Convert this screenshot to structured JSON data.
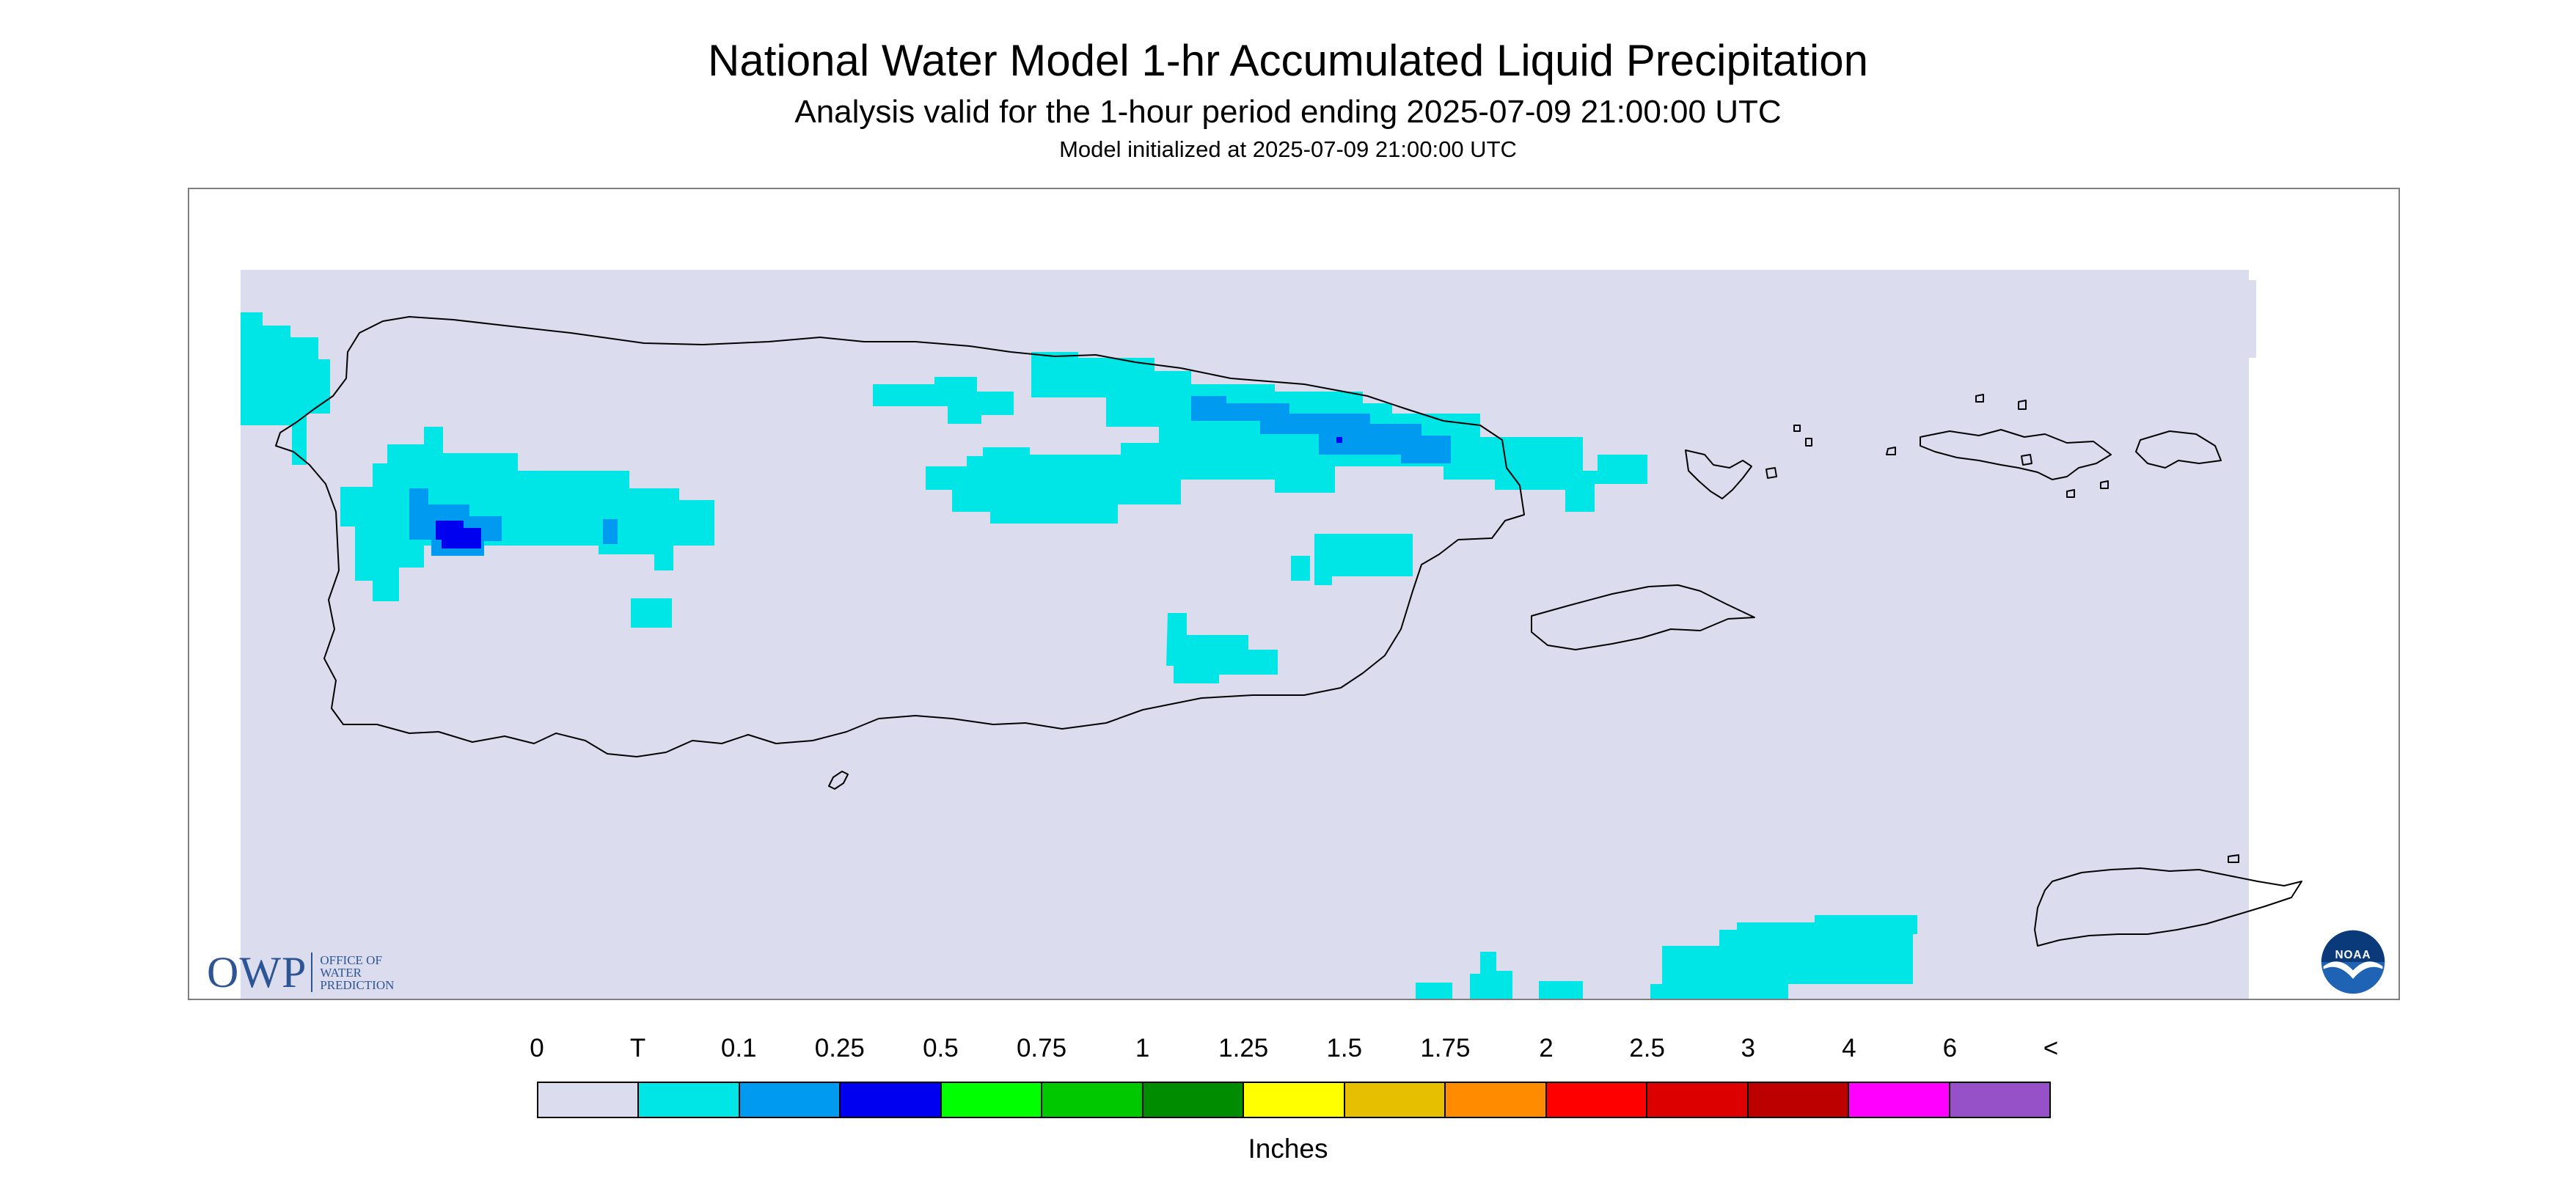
{
  "header": {
    "title": "National Water Model 1-hr Accumulated Liquid Precipitation",
    "subtitle": "Analysis valid for the 1-hour period ending 2025-07-09 21:00:00 UTC",
    "init": "Model initialized at 2025-07-09 21:00:00 UTC"
  },
  "map": {
    "background_color": "#dcdcef",
    "coastline_color": "#000000",
    "land_masses": [
      "puerto-rico",
      "culebra",
      "vieques",
      "st-thomas",
      "st-john",
      "st-croix",
      "mona-island"
    ]
  },
  "logos": {
    "owp": {
      "letters": "OWP",
      "line1": "OFFICE OF",
      "line2": "WATER",
      "line3": "PREDICTION",
      "color": "#2d5596"
    },
    "noaa": {
      "text": "NOAA",
      "colors": [
        "#1f63b4",
        "#0a3a7a",
        "#ffffff"
      ]
    }
  },
  "legend": {
    "units": "Inches",
    "labels": [
      "0",
      "T",
      "0.1",
      "0.25",
      "0.5",
      "0.75",
      "1",
      "1.25",
      "1.5",
      "1.75",
      "2",
      "2.5",
      "3",
      "4",
      "6",
      "<"
    ],
    "colors": [
      "#dcdcef",
      "#00e6e6",
      "#009bf0",
      "#0000f0",
      "#00ff00",
      "#00c800",
      "#008c00",
      "#ffff00",
      "#e6c000",
      "#ff8c00",
      "#ff0000",
      "#dc0000",
      "#bc0000",
      "#ff00ff",
      "#9650c8"
    ]
  }
}
